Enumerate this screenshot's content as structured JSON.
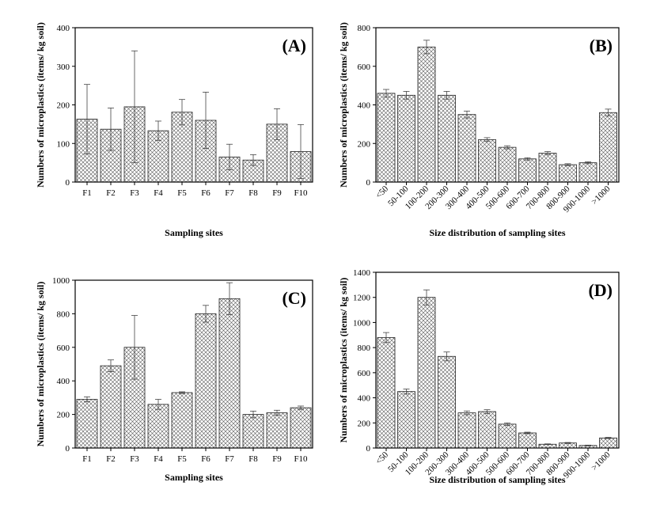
{
  "chart_data": [
    {
      "panel_id": "A",
      "panel_label": "(A)",
      "type": "bar",
      "xlabel": "Sampling sites",
      "ylabel": "Numbers of microplastics (items/ kg soil)",
      "ylim": [
        0,
        400
      ],
      "yticks": [
        0,
        100,
        200,
        300,
        400
      ],
      "tick_labels_rotated": false,
      "categories": [
        "F1",
        "F2",
        "F3",
        "F4",
        "F5",
        "F6",
        "F7",
        "F8",
        "F9",
        "F10"
      ],
      "values": [
        163,
        137,
        195,
        133,
        181,
        160,
        65,
        57,
        150,
        79
      ],
      "errors": [
        90,
        55,
        145,
        25,
        33,
        73,
        33,
        14,
        40,
        70
      ],
      "bar_style": "crosshatch",
      "grid": false
    },
    {
      "panel_id": "B",
      "panel_label": "(B)",
      "type": "bar",
      "xlabel": "Size distribution of sampling sites",
      "ylabel": "Numbers of microplastics (items/ kg soil)",
      "ylim": [
        0,
        800
      ],
      "yticks": [
        0,
        200,
        400,
        600,
        800
      ],
      "tick_labels_rotated": true,
      "categories": [
        "<50",
        "50-100",
        "100-200",
        "200-300",
        "300-400",
        "400-500",
        "500-600",
        "600-700",
        "700-800",
        "800-900",
        "900-1000",
        ">1000"
      ],
      "values": [
        460,
        450,
        700,
        450,
        350,
        220,
        180,
        120,
        150,
        90,
        100,
        360
      ],
      "errors": [
        20,
        20,
        35,
        20,
        18,
        10,
        8,
        6,
        8,
        5,
        5,
        18
      ],
      "bar_style": "crosshatch",
      "grid": false
    },
    {
      "panel_id": "C",
      "panel_label": "(C)",
      "type": "bar",
      "xlabel": "Sampling sites",
      "ylabel": "Numbers of microplastics (items/ kg soil)",
      "ylim": [
        0,
        1000
      ],
      "yticks": [
        0,
        200,
        400,
        600,
        800,
        1000
      ],
      "tick_labels_rotated": false,
      "categories": [
        "F1",
        "F2",
        "F3",
        "F4",
        "F5",
        "F6",
        "F7",
        "F8",
        "F9",
        "F10"
      ],
      "values": [
        290,
        490,
        600,
        260,
        330,
        800,
        890,
        200,
        210,
        240
      ],
      "errors": [
        15,
        35,
        190,
        30,
        5,
        50,
        95,
        20,
        15,
        10
      ],
      "bar_style": "crosshatch",
      "grid": false
    },
    {
      "panel_id": "D",
      "panel_label": "(D)",
      "type": "bar",
      "xlabel": "Size distribution of sampling sites",
      "ylabel": "Numbers of microplastics (items/ kg soil)",
      "ylim": [
        0,
        1400
      ],
      "yticks": [
        0,
        200,
        400,
        600,
        800,
        1000,
        1200,
        1400
      ],
      "tick_labels_rotated": true,
      "categories": [
        "<50",
        "50-100",
        "100-200",
        "200-300",
        "300-400",
        "400-500",
        "500-600",
        "600-700",
        "700-800",
        "800-900",
        "900-1000",
        ">1000"
      ],
      "values": [
        880,
        450,
        1200,
        730,
        280,
        290,
        190,
        120,
        30,
        40,
        20,
        80
      ],
      "errors": [
        40,
        20,
        60,
        35,
        15,
        15,
        10,
        6,
        3,
        4,
        3,
        5
      ],
      "bar_style": "crosshatch",
      "grid": false
    }
  ]
}
